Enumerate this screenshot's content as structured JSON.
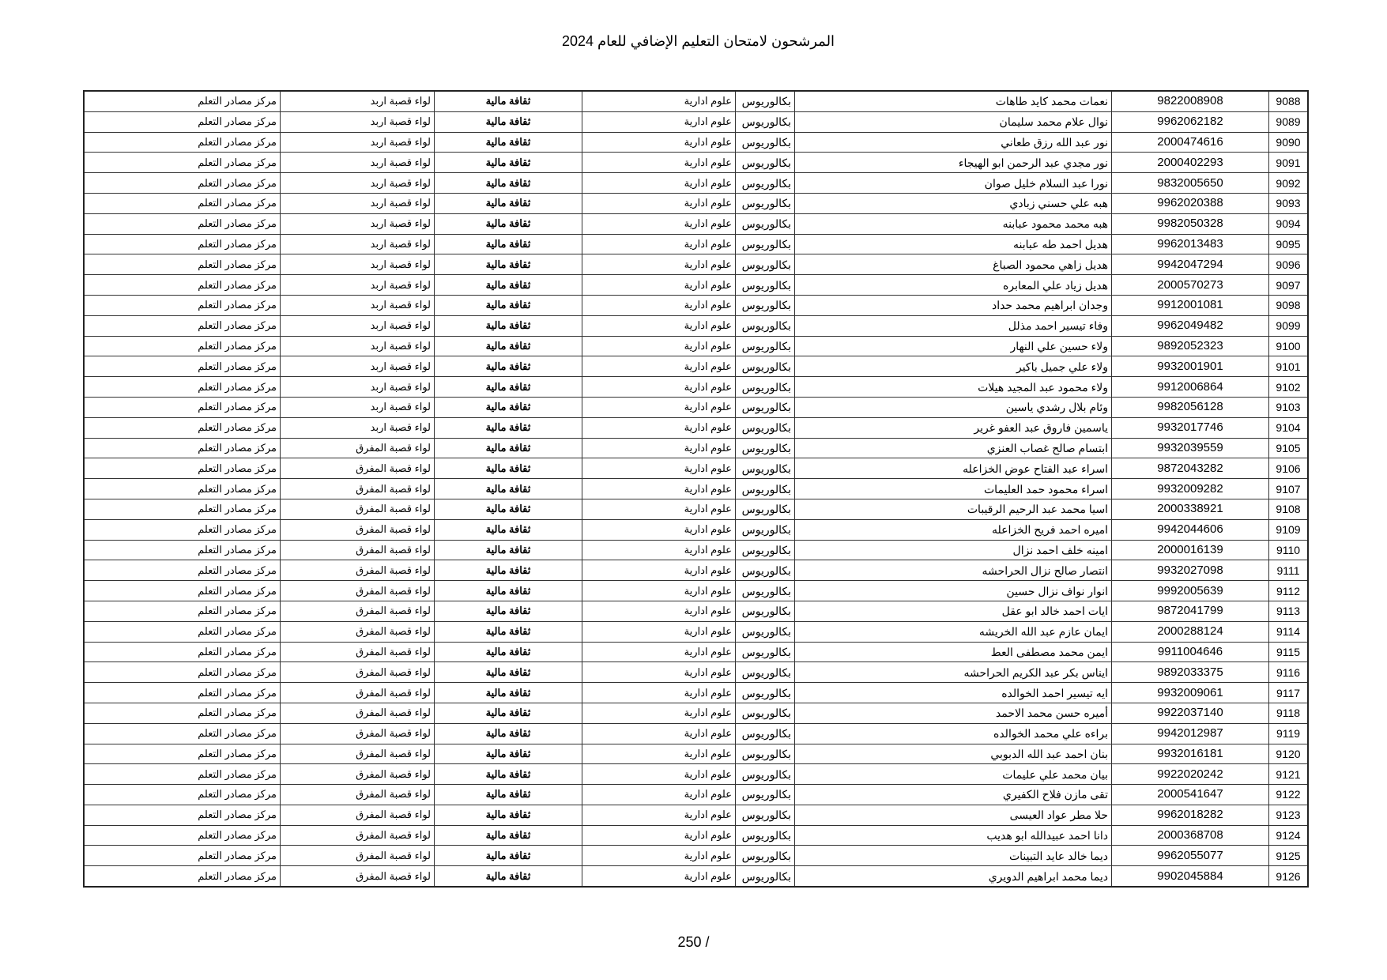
{
  "title": "المرشحون لامتحان التعليم الإضافي للعام 2024",
  "page_number": "250 /",
  "columns_fixed": {
    "degree": "بكالوريوس",
    "major": "علوم ادارية",
    "subject": "ثقافة مالية",
    "center": "مركز مصادر التعلم"
  },
  "rows": [
    [
      "9088",
      "9822008908",
      "نعمات محمد كايد طاهات",
      "لواء قصبة اربد"
    ],
    [
      "9089",
      "9962062182",
      "نوال علام محمد سليمان",
      "لواء قصبة اربد"
    ],
    [
      "9090",
      "2000474616",
      "نور عبد الله رزق طعاني",
      "لواء قصبة اربد"
    ],
    [
      "9091",
      "2000402293",
      "نور مجدي عبد الرحمن ابو الهيجاء",
      "لواء قصبة اربد"
    ],
    [
      "9092",
      "9832005650",
      "نورا عبد السلام خليل صوان",
      "لواء قصبة اربد"
    ],
    [
      "9093",
      "9962020388",
      "هبه علي حسني زبادي",
      "لواء قصبة اربد"
    ],
    [
      "9094",
      "9982050328",
      "هبه محمد محمود عبابنه",
      "لواء قصبة اربد"
    ],
    [
      "9095",
      "9962013483",
      "هديل احمد طه عبابنه",
      "لواء قصبة اربد"
    ],
    [
      "9096",
      "9942047294",
      "هديل زاهي محمود الصباغ",
      "لواء قصبة اربد"
    ],
    [
      "9097",
      "2000570273",
      "هديل زياد علي المعابره",
      "لواء قصبة اربد"
    ],
    [
      "9098",
      "9912001081",
      "وجدان ابراهيم محمد حداد",
      "لواء قصبة اربد"
    ],
    [
      "9099",
      "9962049482",
      "وفاء تيسير احمد مذلل",
      "لواء قصبة اربد"
    ],
    [
      "9100",
      "9892052323",
      "ولاء حسين علي النهار",
      "لواء قصبة اربد"
    ],
    [
      "9101",
      "9932001901",
      "ولاء علي جميل باكير",
      "لواء قصبة اربد"
    ],
    [
      "9102",
      "9912006864",
      "ولاء محمود عبد المجيد هيلات",
      "لواء قصبة اربد"
    ],
    [
      "9103",
      "9982056128",
      "وئام بلال رشدي ياسين",
      "لواء قصبة اربد"
    ],
    [
      "9104",
      "9932017746",
      "ياسمين فاروق عبد العفو غرير",
      "لواء قصبة اربد"
    ],
    [
      "9105",
      "9932039559",
      "ابتسام صالح غصاب العنزي",
      "لواء قصبة المفرق"
    ],
    [
      "9106",
      "9872043282",
      "اسراء عبد الفتاح عوض الخزاعله",
      "لواء قصبة المفرق"
    ],
    [
      "9107",
      "9932009282",
      "اسراء محمود حمد العليمات",
      "لواء قصبة المفرق"
    ],
    [
      "9108",
      "2000338921",
      "اسيا محمد عبد الرحيم الرقيبات",
      "لواء قصبة المفرق"
    ],
    [
      "9109",
      "9942044606",
      "اميره احمد فريح الخزاعله",
      "لواء قصبة المفرق"
    ],
    [
      "9110",
      "2000016139",
      "امينه خلف احمد نزال",
      "لواء قصبة المفرق"
    ],
    [
      "9111",
      "9932027098",
      "انتصار صالح نزال الحراحشه",
      "لواء قصبة المفرق"
    ],
    [
      "9112",
      "9992005639",
      "انوار نواف نزال حسين",
      "لواء قصبة المفرق"
    ],
    [
      "9113",
      "9872041799",
      "ايات احمد خالد ابو عقل",
      "لواء قصبة المفرق"
    ],
    [
      "9114",
      "2000288124",
      "ايمان عازم عبد الله الخريشه",
      "لواء قصبة المفرق"
    ],
    [
      "9115",
      "9911004646",
      "ايمن محمد مصطفى العط",
      "لواء قصبة المفرق"
    ],
    [
      "9116",
      "9892033375",
      "ايناس بكر عبد الكريم الحراحشه",
      "لواء قصبة المفرق"
    ],
    [
      "9117",
      "9932009061",
      "ايه تيسير احمد الخوالده",
      "لواء قصبة المفرق"
    ],
    [
      "9118",
      "9922037140",
      "أميره حسن محمد الاحمد",
      "لواء قصبة المفرق"
    ],
    [
      "9119",
      "9942012987",
      "براءه علي محمد الخوالده",
      "لواء قصبة المفرق"
    ],
    [
      "9120",
      "9932016181",
      "بنان احمد عبد الله الدبوبي",
      "لواء قصبة المفرق"
    ],
    [
      "9121",
      "9922020242",
      "بيان محمد علي عليمات",
      "لواء قصبة المفرق"
    ],
    [
      "9122",
      "2000541647",
      "تقى مازن فلاح الكفيري",
      "لواء قصبة المفرق"
    ],
    [
      "9123",
      "9962018282",
      "حلا مطر عواد العيسى",
      "لواء قصبة المفرق"
    ],
    [
      "9124",
      "2000368708",
      "دانا احمد عبيدالله ابو هديب",
      "لواء قصبة المفرق"
    ],
    [
      "9125",
      "9962055077",
      "ديما خالد عايد التبينات",
      "لواء قصبة المفرق"
    ],
    [
      "9126",
      "9902045884",
      "ديما محمد ابراهيم الدويري",
      "لواء قصبة المفرق"
    ]
  ]
}
